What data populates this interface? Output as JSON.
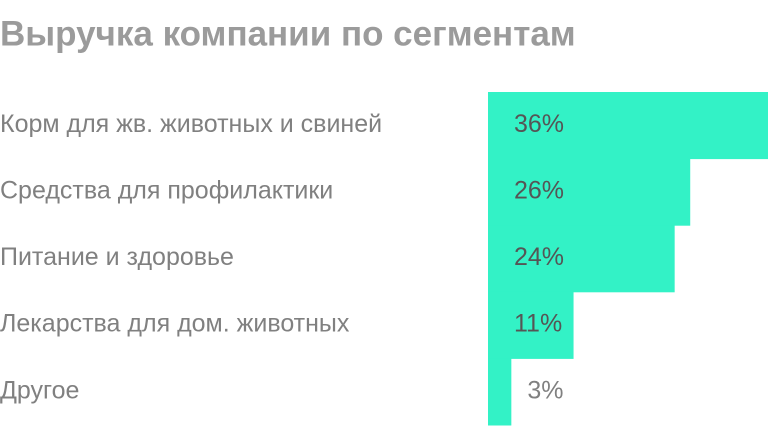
{
  "chart_data": {
    "type": "bar",
    "orientation": "horizontal",
    "title": "Выручка компании по сегментам",
    "categories": [
      "Корм для жв. животных и свиней",
      "Средства для профилактики",
      "Питание и здоровье",
      "Лекарства для дом. животных",
      "Другое"
    ],
    "values": [
      36,
      26,
      24,
      11,
      3
    ],
    "value_labels": [
      "36%",
      "26%",
      "24%",
      "11%",
      "3%"
    ],
    "color": "#33f2c6"
  }
}
